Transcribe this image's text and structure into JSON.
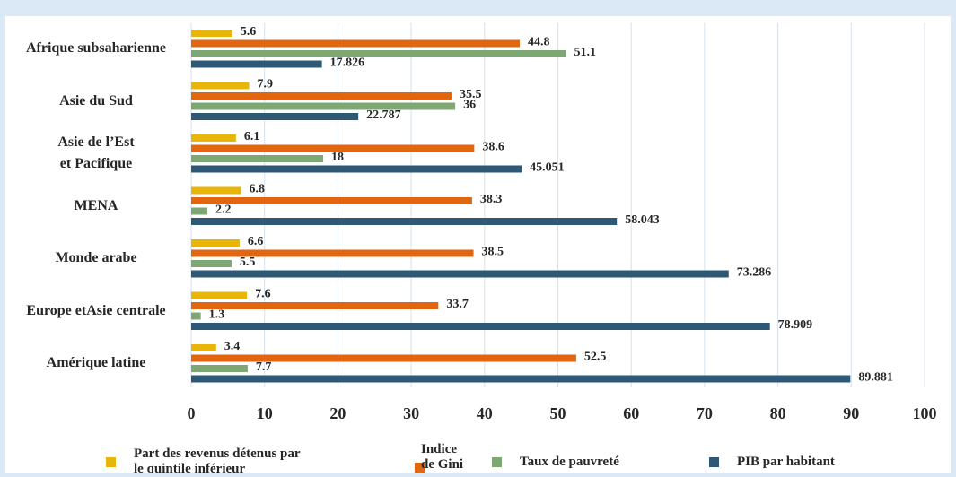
{
  "chart_data": {
    "type": "bar",
    "orientation": "horizontal",
    "categories": [
      "Afrique subsaharienne",
      "Asie du Sud",
      "Asie de l’Est\net Pacifique",
      "MENA",
      "Monde arabe",
      "Europe etAsie centrale",
      "Amérique latine"
    ],
    "series": [
      {
        "name": "Part des revenus détenus par\nle quintile inférieur",
        "color": "#e8b50a",
        "values": [
          5.6,
          7.9,
          6.1,
          6.8,
          6.6,
          7.6,
          3.4
        ]
      },
      {
        "name": "Indice\nde Gini",
        "color": "#e2650f",
        "values": [
          44.8,
          35.5,
          38.6,
          38.3,
          38.5,
          33.7,
          52.5
        ]
      },
      {
        "name": "Taux de pauvreté",
        "color": "#7ea873",
        "values": [
          51.1,
          36,
          18,
          2.2,
          5.5,
          1.3,
          7.7
        ]
      },
      {
        "name": "PIB par habitant",
        "color": "#2d5876",
        "values": [
          17.826,
          22.787,
          45.051,
          58.043,
          73.286,
          78.909,
          89.881
        ]
      }
    ],
    "xlim": [
      0,
      100
    ],
    "xticks": [
      0,
      10,
      20,
      30,
      40,
      50,
      60,
      70,
      80,
      90,
      100
    ],
    "grid": true,
    "legend": "bottom"
  }
}
